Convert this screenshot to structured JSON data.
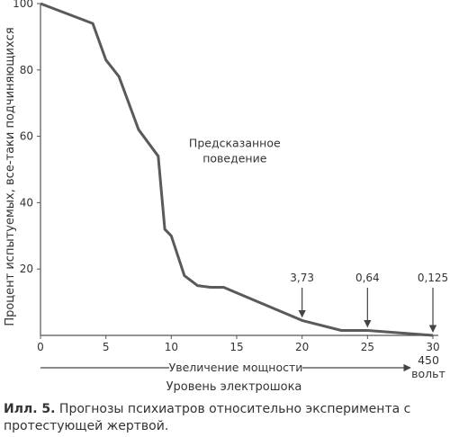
{
  "chart_data": {
    "type": "line",
    "title": "",
    "xlabel": "Уровень электрошока",
    "ylabel": "Процент испытуемых, все-таки подчиняющихся",
    "xlim": [
      0,
      30
    ],
    "ylim": [
      0,
      100
    ],
    "x_ticks": [
      0,
      5,
      10,
      15,
      20,
      25,
      30
    ],
    "y_ticks": [
      20,
      40,
      60,
      80,
      100
    ],
    "grid": false,
    "series": [
      {
        "name": "",
        "x": [
          0,
          4,
          5,
          6,
          7.5,
          9,
          9.5,
          10,
          11,
          12,
          13,
          14,
          20,
          23,
          25,
          30
        ],
        "y": [
          100,
          94,
          83,
          78,
          62,
          54,
          32,
          30,
          18,
          15,
          14.5,
          14.5,
          4.5,
          1.5,
          1.5,
          0
        ]
      }
    ],
    "annotations": [
      {
        "text_lines": [
          "Предсказанное",
          "поведение"
        ],
        "x": 9,
        "y": 54,
        "arrow": false
      },
      {
        "text": "3,73",
        "x": 20,
        "y": 4.5,
        "arrow": true
      },
      {
        "text": "0,64",
        "x": 25,
        "y": 1.5,
        "arrow": true
      },
      {
        "text": "0,125",
        "x": 30,
        "y": 0,
        "arrow": true
      }
    ],
    "arrow_axis": {
      "label": "Увеличение мощности",
      "end_label_lines": [
        "450",
        "вольт"
      ]
    }
  },
  "caption": {
    "label": "Илл. 5.",
    "text": " Прогнозы психиатров относительно эксперимента с протестующей жертвой."
  }
}
